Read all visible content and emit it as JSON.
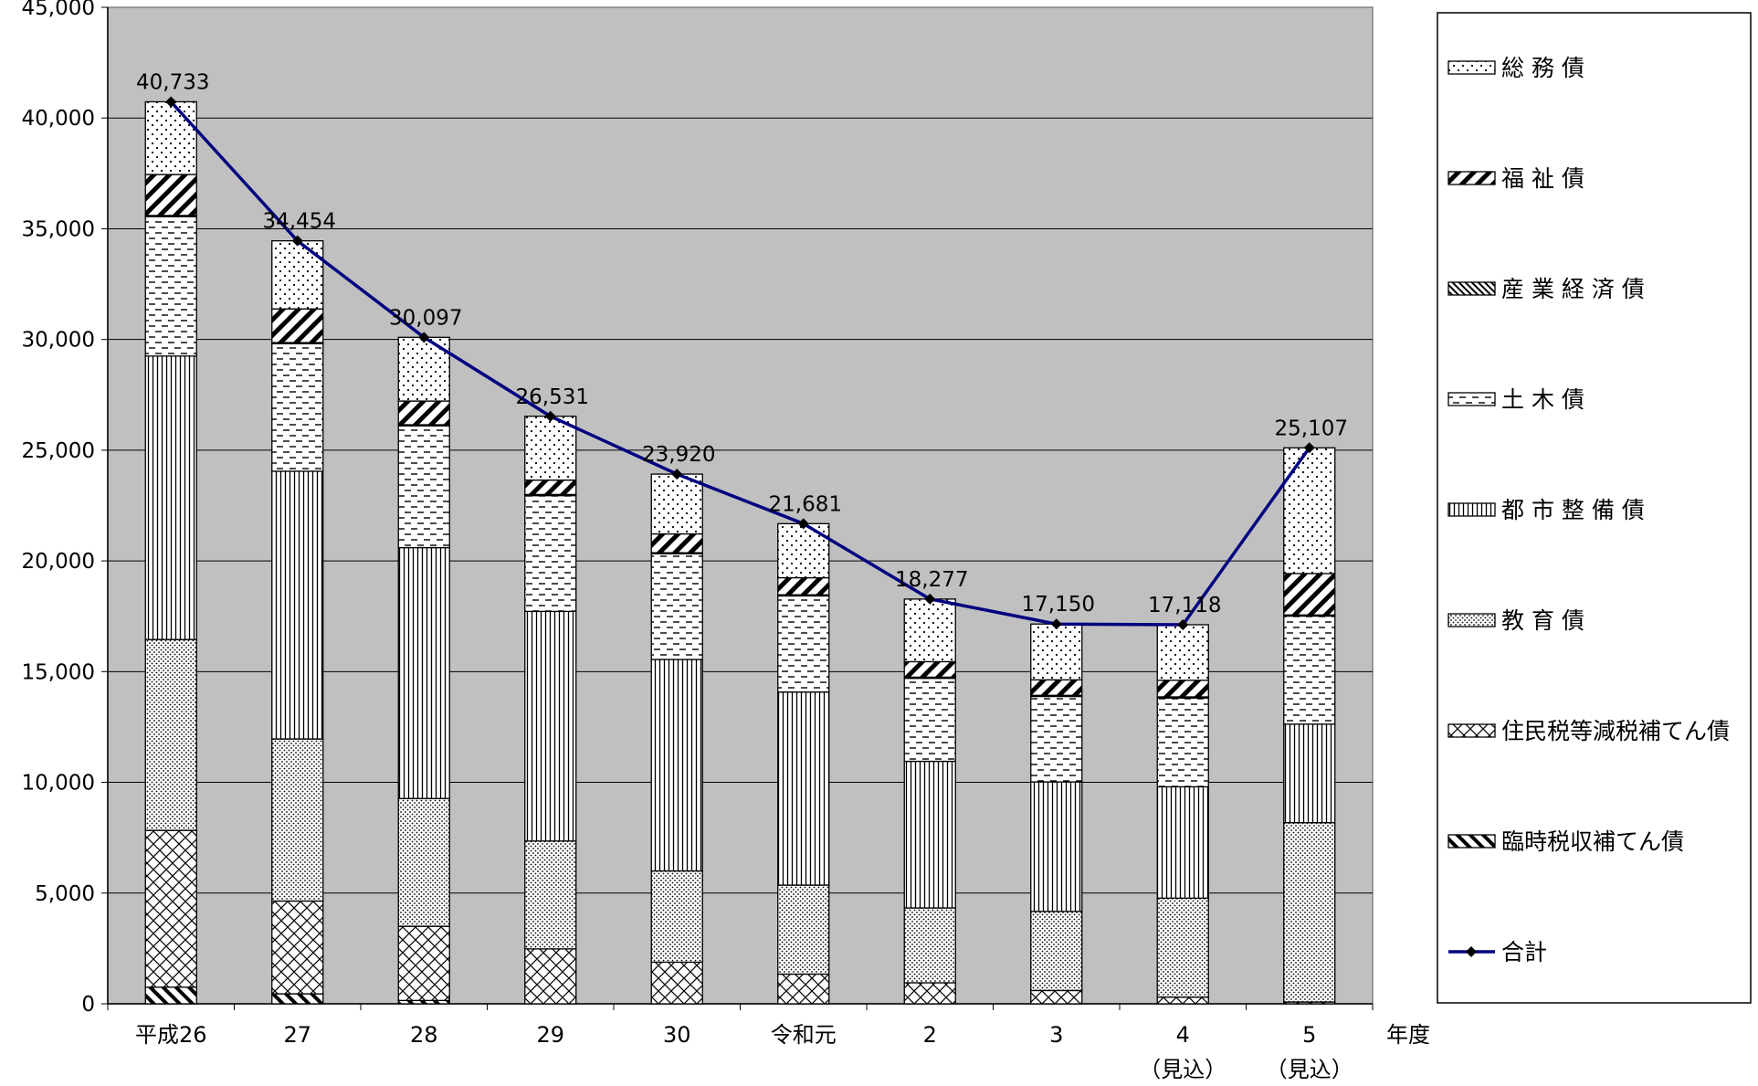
{
  "chart_data": {
    "type": "bar",
    "stacked": true,
    "categories": [
      "平成26",
      "27",
      "28",
      "29",
      "30",
      "令和元",
      "2",
      "3",
      "4",
      "5"
    ],
    "category_notes": [
      "",
      "",
      "",
      "",
      "",
      "",
      "",
      "",
      "（見込）",
      "（見込）"
    ],
    "x_unit_label": "年度",
    "ylim": [
      0,
      45000
    ],
    "yticks": [
      "0",
      "5,000",
      "10,000",
      "15,000",
      "20,000",
      "25,000",
      "30,000",
      "35,000",
      "40,000",
      "45,000"
    ],
    "grid": true,
    "legend_position": "right",
    "series": [
      {
        "name": "臨時税収補てん債",
        "pattern": "diag-heavy",
        "values": [
          750,
          450,
          150,
          0,
          0,
          0,
          0,
          0,
          0,
          0
        ]
      },
      {
        "name": "住民税等減税補てん債",
        "pattern": "crosshatch",
        "values": [
          7080,
          4190,
          3350,
          2480,
          1880,
          1340,
          950,
          600,
          300,
          80
        ]
      },
      {
        "name": "教 育 債",
        "pattern": "dense-dots",
        "values": [
          8620,
          7320,
          5770,
          4870,
          4120,
          4020,
          3380,
          3570,
          4470,
          8100
        ]
      },
      {
        "name": "都 市 整 備 債",
        "pattern": "vertical",
        "values": [
          12800,
          12090,
          11330,
          10370,
          9550,
          8720,
          6620,
          5850,
          5030,
          4450
        ]
      },
      {
        "name": "土 木 債",
        "pattern": "dashes",
        "values": [
          6300,
          5760,
          5500,
          5230,
          4770,
          4340,
          3750,
          3860,
          4010,
          4880
        ]
      },
      {
        "name": "産 業 経 済 債",
        "pattern": "diag-fine",
        "values": [
          50,
          50,
          50,
          50,
          50,
          50,
          50,
          50,
          50,
          50
        ]
      },
      {
        "name": "福 祉 債",
        "pattern": "diag-wide",
        "values": [
          1850,
          1520,
          1070,
          650,
          850,
          770,
          700,
          700,
          750,
          1870
        ]
      },
      {
        "name": "総 務 債",
        "pattern": "sparse-dots",
        "values": [
          3283,
          3074,
          2877,
          2881,
          2700,
          2441,
          2827,
          2520,
          2508,
          5677
        ]
      }
    ],
    "total": {
      "name": "合計",
      "values": [
        40733,
        34454,
        30097,
        26531,
        23920,
        21681,
        18277,
        17150,
        17118,
        25107
      ],
      "labels": [
        "40,733",
        "34,454",
        "30,097",
        "26,531",
        "23,920",
        "21,681",
        "18,277",
        "17,150",
        "17,118",
        "25,107"
      ],
      "color": "#000080"
    },
    "legend_order": [
      "総 務 債",
      "福 祉 債",
      "産 業 経 済 債",
      "土 木 債",
      "都 市 整 備 債",
      "教 育 債",
      "住民税等減税補てん債",
      "臨時税収補てん債",
      "合計"
    ],
    "colors": {
      "plot_background": "#c0c0c0",
      "bar_fill": "#ffffff",
      "ink": "#000000",
      "line": "#000080"
    }
  }
}
